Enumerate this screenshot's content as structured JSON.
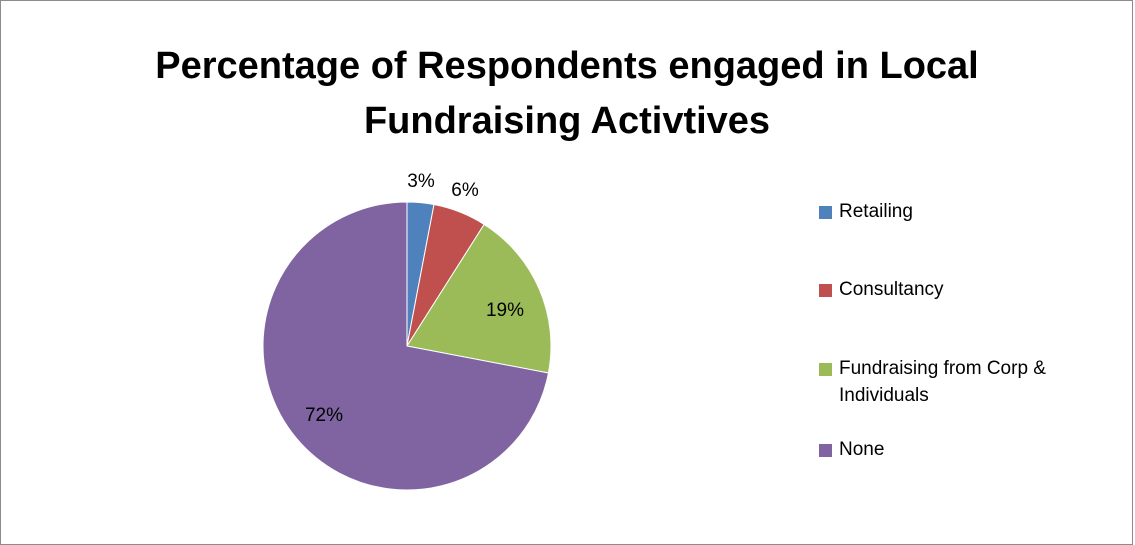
{
  "chart_data": {
    "type": "pie",
    "title": "Percentage of Respondents engaged in Local Fundraising Activtives",
    "categories": [
      "Retailing",
      "Consultancy",
      "Fundraising from Corp & Individuals",
      "None"
    ],
    "values": [
      3,
      6,
      19,
      72
    ],
    "data_labels": [
      "3%",
      "6%",
      "19%",
      "72%"
    ],
    "colors": [
      "#4f81bd",
      "#c0504d",
      "#9bbb59",
      "#8064a2"
    ],
    "legend_position": "right",
    "legend": [
      {
        "label": "Retailing",
        "color": "#4f81bd"
      },
      {
        "label": "Consultancy",
        "color": "#c0504d"
      },
      {
        "label": "Fundraising from Corp & Individuals",
        "color": "#9bbb59"
      },
      {
        "label": "None",
        "color": "#8064a2"
      }
    ]
  }
}
